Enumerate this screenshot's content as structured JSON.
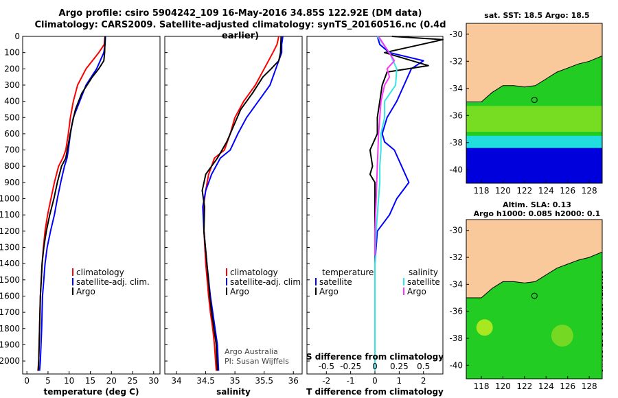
{
  "header": {
    "line1": "Argo profile: csiro 5904242_109 16-May-2016 34.85S 122.92E (DM data)",
    "line2": "Climatology: CARS2009. Satellite-adjusted climatology: synTS_20160516.nc (0.4d earlier)"
  },
  "maps": {
    "top_title": "sat. SST: 18.5 Argo: 18.5",
    "bottom_title_1": "Altim. SLA: 0.13",
    "bottom_title_2": "Argo h1000: 0.085 h2000: 0.1",
    "lat_ticks": [
      "-30",
      "-32",
      "-34",
      "-36",
      "-38",
      "-40"
    ],
    "lon_ticks": [
      "118",
      "120",
      "122",
      "124",
      "126",
      "128"
    ]
  },
  "credit": "©IMOS 13-Dec-2018 02:10:55",
  "panel_notes": {
    "line1": "Argo Australia",
    "line2": "PI: Susan Wijffels"
  },
  "legends": {
    "climatology": "climatology",
    "satellite_adj": "satellite-adj. clim.",
    "argo": "Argo",
    "temperature": "temperature",
    "salinity": "salinity",
    "satellite": "satellite",
    "s_diff_label": "S difference from climatology"
  },
  "colors": {
    "climatology": "#ff0000",
    "satellite": "#0000ff",
    "argo": "#000000",
    "sal_sat": "#33e6e6",
    "sal_argo": "#ff33ff"
  },
  "chart_data": [
    {
      "type": "line",
      "xlabel": "temperature (deg C)",
      "ylabel": "",
      "xlim": [
        -1,
        31.5
      ],
      "ylim": [
        2080,
        0
      ],
      "x_ticks": [
        "0",
        "5",
        "10",
        "15",
        "20",
        "25",
        "30"
      ],
      "y_ticks": [
        "0",
        "100",
        "200",
        "300",
        "400",
        "500",
        "600",
        "700",
        "800",
        "900",
        "1000",
        "1100",
        "1200",
        "1300",
        "1400",
        "1500",
        "1600",
        "1700",
        "1800",
        "1900",
        "2000"
      ],
      "series": [
        {
          "name": "climatology",
          "x": [
            18.5,
            18.3,
            17.0,
            14.0,
            12.0,
            11.0,
            10.3,
            9.8,
            9.2,
            8.5,
            7.5,
            6.5,
            5.7,
            4.9,
            4.3,
            3.9,
            3.6,
            3.4,
            3.2,
            3.0,
            2.8,
            2.6
          ],
          "y": [
            0,
            50,
            100,
            200,
            300,
            400,
            500,
            600,
            700,
            750,
            800,
            900,
            1000,
            1100,
            1200,
            1300,
            1400,
            1500,
            1600,
            1800,
            2000,
            2060
          ]
        },
        {
          "name": "satellite-adj. clim.",
          "x": [
            18.6,
            18.5,
            18.2,
            16.5,
            14.0,
            12.5,
            11.0,
            10.3,
            9.8,
            9.5,
            8.9,
            8.0,
            7.2,
            6.5,
            5.6,
            4.8,
            4.3,
            4.0,
            3.7,
            3.5,
            3.2,
            3.0
          ],
          "y": [
            0,
            50,
            100,
            200,
            300,
            400,
            500,
            600,
            700,
            750,
            800,
            900,
            1000,
            1100,
            1200,
            1300,
            1400,
            1500,
            1600,
            1800,
            2000,
            2060
          ]
        },
        {
          "name": "Argo",
          "x": [
            18.5,
            18.4,
            18.2,
            17.0,
            15.5,
            13.0,
            11.5,
            10.6,
            9.9,
            9.2,
            8.2,
            7.2,
            6.4,
            5.4,
            4.6,
            4.0,
            3.6,
            3.4,
            3.2,
            3.0,
            2.8,
            2.7
          ],
          "y": [
            0,
            100,
            150,
            200,
            250,
            350,
            450,
            550,
            650,
            750,
            800,
            900,
            1000,
            1100,
            1200,
            1300,
            1400,
            1500,
            1600,
            1800,
            2000,
            2060
          ]
        }
      ]
    },
    {
      "type": "line",
      "xlabel": "salinity",
      "ylabel": "",
      "xlim": [
        33.8,
        36.15
      ],
      "ylim": [
        2080,
        0
      ],
      "x_ticks": [
        "34",
        "34.5",
        "35",
        "35.5",
        "36"
      ],
      "series": [
        {
          "name": "climatology",
          "x": [
            35.75,
            35.72,
            35.65,
            35.5,
            35.35,
            35.15,
            35.0,
            34.92,
            34.82,
            34.65,
            34.55,
            34.5,
            34.46,
            34.47,
            34.5,
            34.55,
            34.58,
            34.62,
            34.65,
            34.68
          ],
          "y": [
            0,
            50,
            100,
            200,
            300,
            400,
            500,
            600,
            700,
            750,
            850,
            950,
            1050,
            1200,
            1400,
            1600,
            1700,
            1800,
            1900,
            2060
          ]
        },
        {
          "name": "satellite-adj. clim.",
          "x": [
            35.82,
            35.8,
            35.8,
            35.7,
            35.6,
            35.4,
            35.2,
            35.05,
            34.92,
            34.75,
            34.6,
            34.5,
            34.45,
            34.47,
            34.52,
            34.58,
            34.62,
            34.66,
            34.7,
            34.72
          ],
          "y": [
            0,
            50,
            100,
            200,
            300,
            400,
            500,
            600,
            700,
            750,
            850,
            950,
            1050,
            1200,
            1400,
            1600,
            1700,
            1800,
            1900,
            2060
          ]
        },
        {
          "name": "Argo",
          "x": [
            35.79,
            35.78,
            35.75,
            35.62,
            35.48,
            35.3,
            35.1,
            34.98,
            34.86,
            34.7,
            34.5,
            34.44,
            34.48,
            34.47,
            34.52,
            34.57,
            34.6,
            34.64,
            34.68,
            34.7
          ],
          "y": [
            0,
            100,
            150,
            200,
            250,
            350,
            450,
            550,
            650,
            750,
            850,
            950,
            1050,
            1200,
            1400,
            1600,
            1700,
            1800,
            1900,
            2060
          ]
        }
      ]
    },
    {
      "type": "line",
      "xlabel": "T difference from climatology",
      "ylabel": "",
      "xlim": [
        -2.8,
        2.8
      ],
      "ylim": [
        2080,
        0
      ],
      "x_ticks": [
        "-2",
        "-1",
        "0",
        "1",
        "2"
      ],
      "x2_ticks": [
        "-0.5",
        "-0.25",
        "0",
        "0.25",
        "0.5"
      ],
      "series": [
        {
          "name": "temperature satellite",
          "x": [
            0.1,
            0.2,
            0.6,
            2.0,
            1.5,
            1.2,
            0.9,
            0.5,
            0.3,
            0.4,
            0.8,
            1.1,
            1.4,
            0.9,
            0.6,
            0.1,
            0.0,
            0.0,
            0.0,
            0.0,
            0.0
          ],
          "y": [
            0,
            50,
            100,
            150,
            200,
            300,
            400,
            500,
            600,
            650,
            700,
            800,
            900,
            1000,
            1100,
            1200,
            1400,
            1600,
            1800,
            2000,
            2060
          ]
        },
        {
          "name": "temperature Argo",
          "x": [
            0.7,
            2.8,
            0.4,
            2.2,
            0.5,
            0.3,
            0.2,
            0.1,
            0.1,
            -0.2,
            -0.1,
            -0.2,
            0.0,
            0.0,
            0.0,
            0.0,
            0.0,
            0.0,
            0.0,
            0.0
          ],
          "y": [
            0,
            20,
            100,
            180,
            220,
            300,
            400,
            500,
            600,
            700,
            800,
            850,
            900,
            1000,
            1100,
            1300,
            1500,
            1700,
            1900,
            2060
          ]
        },
        {
          "name": "salinity satellite",
          "x": [
            0.1,
            0.6,
            0.9,
            0.85,
            0.4,
            0.4,
            0.25,
            0.25,
            0.2,
            0.2,
            0.15,
            0.1,
            0.05,
            0.0,
            0.0,
            0.0,
            0.0
          ],
          "y": [
            0,
            100,
            200,
            300,
            400,
            500,
            600,
            700,
            800,
            900,
            1000,
            1100,
            1200,
            1400,
            1600,
            1800,
            2060
          ]
        },
        {
          "name": "salinity Argo",
          "x": [
            0.15,
            0.8,
            0.5,
            0.6,
            0.4,
            0.25,
            0.15,
            0.1,
            0.05,
            0.0,
            0.0
          ],
          "y": [
            0,
            150,
            200,
            250,
            300,
            400,
            600,
            800,
            1000,
            1200,
            1350
          ]
        }
      ]
    }
  ]
}
